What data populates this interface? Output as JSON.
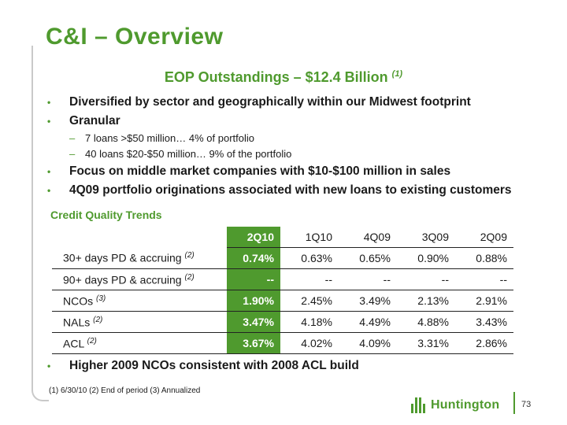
{
  "title": "C&I – Overview",
  "subtitle": {
    "text": "EOP Outstandings – $12.4 Billion",
    "note": "(1)"
  },
  "bullets": [
    {
      "level": 1,
      "text": "Diversified by sector and geographically within our Midwest footprint"
    },
    {
      "level": 1,
      "text": "Granular"
    },
    {
      "level": 2,
      "text": "7 loans >$50 million… 4% of portfolio"
    },
    {
      "level": 2,
      "text": "40 loans $20-$50 million… 9% of the portfolio"
    },
    {
      "level": 1,
      "text": "Focus on middle market companies with $10-$100 million in sales"
    },
    {
      "level": 1,
      "text": "4Q09 portfolio originations associated with new loans to existing customers"
    }
  ],
  "credit_quality": {
    "title": "Credit Quality Trends",
    "columns": [
      "2Q10",
      "1Q10",
      "4Q09",
      "3Q09",
      "2Q09"
    ],
    "rows": [
      {
        "label": "30+ days PD & accruing",
        "note": "(2)",
        "values": [
          "0.74%",
          "0.63%",
          "0.65%",
          "0.90%",
          "0.88%"
        ]
      },
      {
        "label": "90+ days PD & accruing",
        "note": "(2)",
        "values": [
          "--",
          "--",
          "--",
          "--",
          "--"
        ]
      },
      {
        "label": "NCOs",
        "note": "(3)",
        "values": [
          "1.90%",
          "2.45%",
          "3.49%",
          "2.13%",
          "2.91%"
        ]
      },
      {
        "label": "NALs",
        "note": "(2)",
        "values": [
          "3.47%",
          "4.18%",
          "4.49%",
          "4.88%",
          "3.43%"
        ]
      },
      {
        "label": "ACL",
        "note": "(2)",
        "values": [
          "3.67%",
          "4.02%",
          "4.09%",
          "3.31%",
          "2.86%"
        ]
      }
    ]
  },
  "after_bullet": "Higher 2009 NCOs consistent with 2008 ACL build",
  "footnotes": "(1) 6/30/10   (2)  End of period   (3)  Annualized",
  "logo_text": "Huntington",
  "page_number": "73",
  "colors": {
    "accent": "#4f9a2e"
  }
}
